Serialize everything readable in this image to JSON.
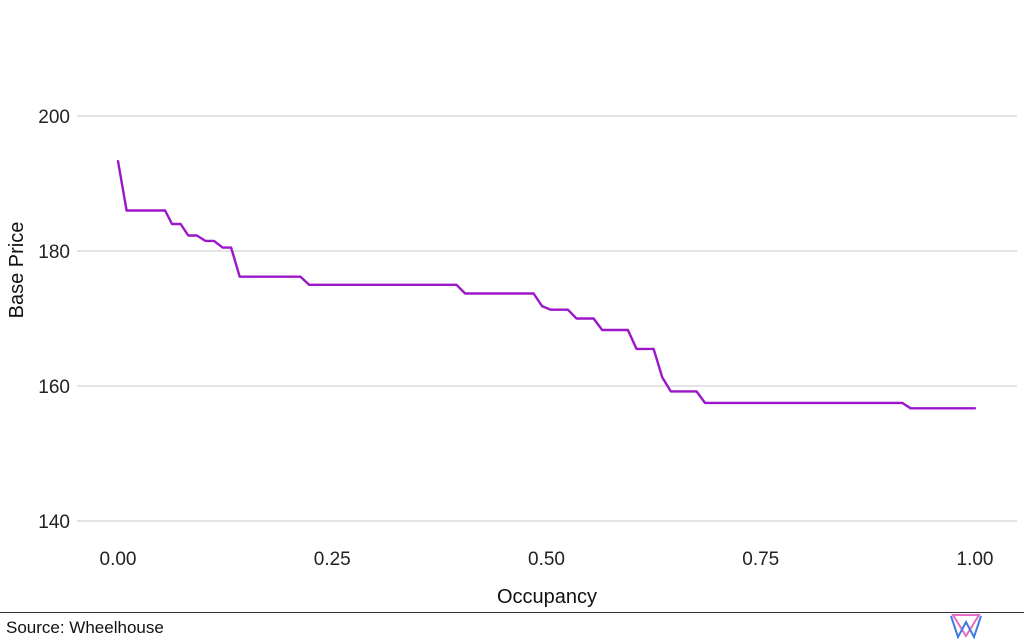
{
  "chart_data": {
    "type": "line",
    "title": "",
    "xlabel": "Occupancy",
    "ylabel": "Base Price",
    "xlim": [
      0,
      1
    ],
    "ylim": [
      140,
      200
    ],
    "xticks": [
      "0.00",
      "0.25",
      "0.50",
      "0.75",
      "1.00"
    ],
    "yticks": [
      "140",
      "160",
      "180",
      "200"
    ],
    "grid": "horizontal",
    "legend": "none",
    "series": [
      {
        "color": "#9b17c9",
        "points": [
          [
            0.0,
            193.3
          ],
          [
            0.01,
            186.0
          ],
          [
            0.055,
            186.0
          ],
          [
            0.063,
            184.0
          ],
          [
            0.073,
            184.0
          ],
          [
            0.082,
            182.3
          ],
          [
            0.092,
            182.3
          ],
          [
            0.102,
            181.5
          ],
          [
            0.112,
            181.5
          ],
          [
            0.122,
            180.5
          ],
          [
            0.132,
            180.5
          ],
          [
            0.142,
            176.2
          ],
          [
            0.213,
            176.2
          ],
          [
            0.223,
            175.0
          ],
          [
            0.395,
            175.0
          ],
          [
            0.405,
            173.7
          ],
          [
            0.485,
            173.7
          ],
          [
            0.495,
            171.8
          ],
          [
            0.505,
            171.3
          ],
          [
            0.525,
            171.3
          ],
          [
            0.535,
            170.0
          ],
          [
            0.555,
            170.0
          ],
          [
            0.565,
            168.3
          ],
          [
            0.595,
            168.3
          ],
          [
            0.605,
            165.5
          ],
          [
            0.625,
            165.5
          ],
          [
            0.635,
            161.3
          ],
          [
            0.645,
            159.2
          ],
          [
            0.675,
            159.2
          ],
          [
            0.685,
            157.5
          ],
          [
            0.915,
            157.5
          ],
          [
            0.925,
            156.7
          ],
          [
            1.0,
            156.7
          ]
        ]
      }
    ]
  },
  "footer": {
    "source": "Source: Wheelhouse",
    "logo_icon": "wheelhouse-logo"
  }
}
